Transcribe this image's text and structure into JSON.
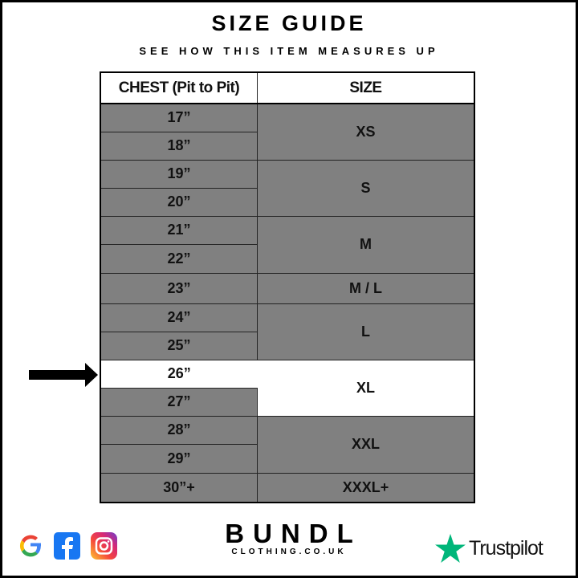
{
  "title": "SIZE GUIDE",
  "subtitle": "SEE HOW THIS ITEM MEASURES UP",
  "table": {
    "headers": [
      "CHEST (Pit to Pit)",
      "SIZE"
    ],
    "chest": [
      "17”",
      "18”",
      "19”",
      "20”",
      "21”",
      "22”",
      "23”",
      "24”",
      "25”",
      "26”",
      "27”",
      "28”",
      "29”",
      "30”+"
    ],
    "sizes": [
      "XS",
      "S",
      "M",
      "M / L",
      "L",
      "XL",
      "XXL",
      "XXXL+"
    ],
    "highlighted_chest": "26”",
    "highlighted_size": "XL"
  },
  "footer": {
    "icons": [
      "google-icon",
      "facebook-icon",
      "instagram-icon"
    ],
    "brand": "BUNDL",
    "brand_sub": "CLOTHING.CO.UK",
    "trustpilot": "Trustpilot"
  },
  "colors": {
    "cell": "#808080",
    "highlight": "#ffffff",
    "trustpilot": "#00b67a"
  }
}
